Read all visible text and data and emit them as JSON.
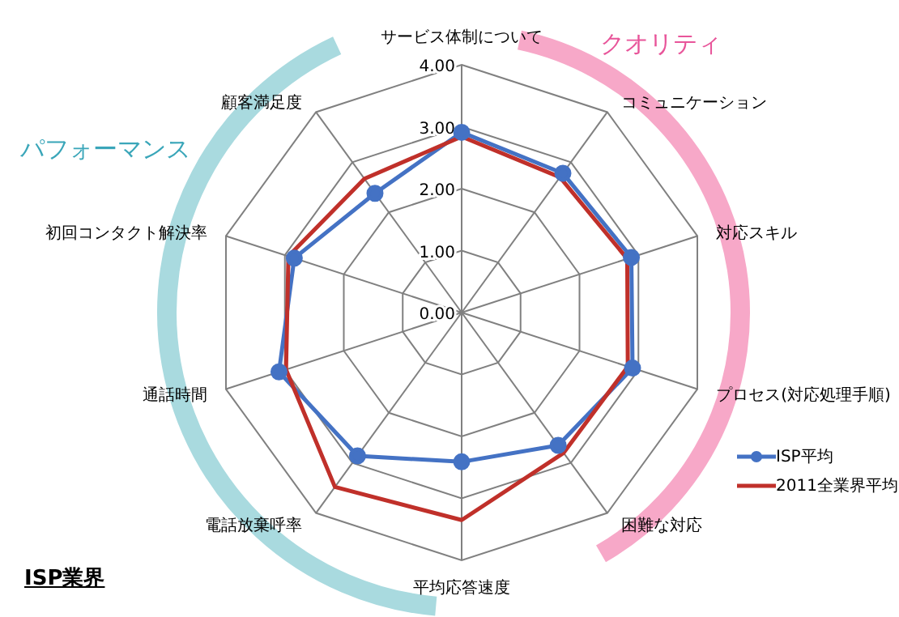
{
  "chart_data": {
    "type": "radar",
    "title": "ISP業界",
    "categories": [
      "サービス体制について",
      "コミュニケーション",
      "対応スキル",
      "プロセス(対応処理手順)",
      "困難な対応",
      "平均応答速度",
      "電話放棄呼率",
      "通話時間",
      "初回コンタクト解決率",
      "顧客満足度"
    ],
    "series": [
      {
        "name": "ISP平均",
        "color": "#4472c4",
        "marker": "circle",
        "values": [
          2.91,
          2.78,
          2.88,
          2.9,
          2.65,
          2.41,
          2.86,
          3.1,
          2.84,
          2.38
        ]
      },
      {
        "name": "2011全業界平均",
        "color": "#c0302a",
        "marker": "none",
        "values": [
          2.84,
          2.7,
          2.81,
          2.82,
          2.8,
          3.35,
          3.48,
          2.98,
          2.94,
          2.67
        ]
      }
    ],
    "ylim": [
      0,
      4
    ],
    "yticks": [
      {
        "value": 0,
        "label": "0.00"
      },
      {
        "value": 1,
        "label": "1.00"
      },
      {
        "value": 2,
        "label": "2.00"
      },
      {
        "value": 3,
        "label": "3.00"
      },
      {
        "value": 4,
        "label": "4.00"
      }
    ],
    "annotations": [
      "クオリティ",
      "パフォーマンス"
    ],
    "grid": true,
    "legend": "bottom right"
  }
}
